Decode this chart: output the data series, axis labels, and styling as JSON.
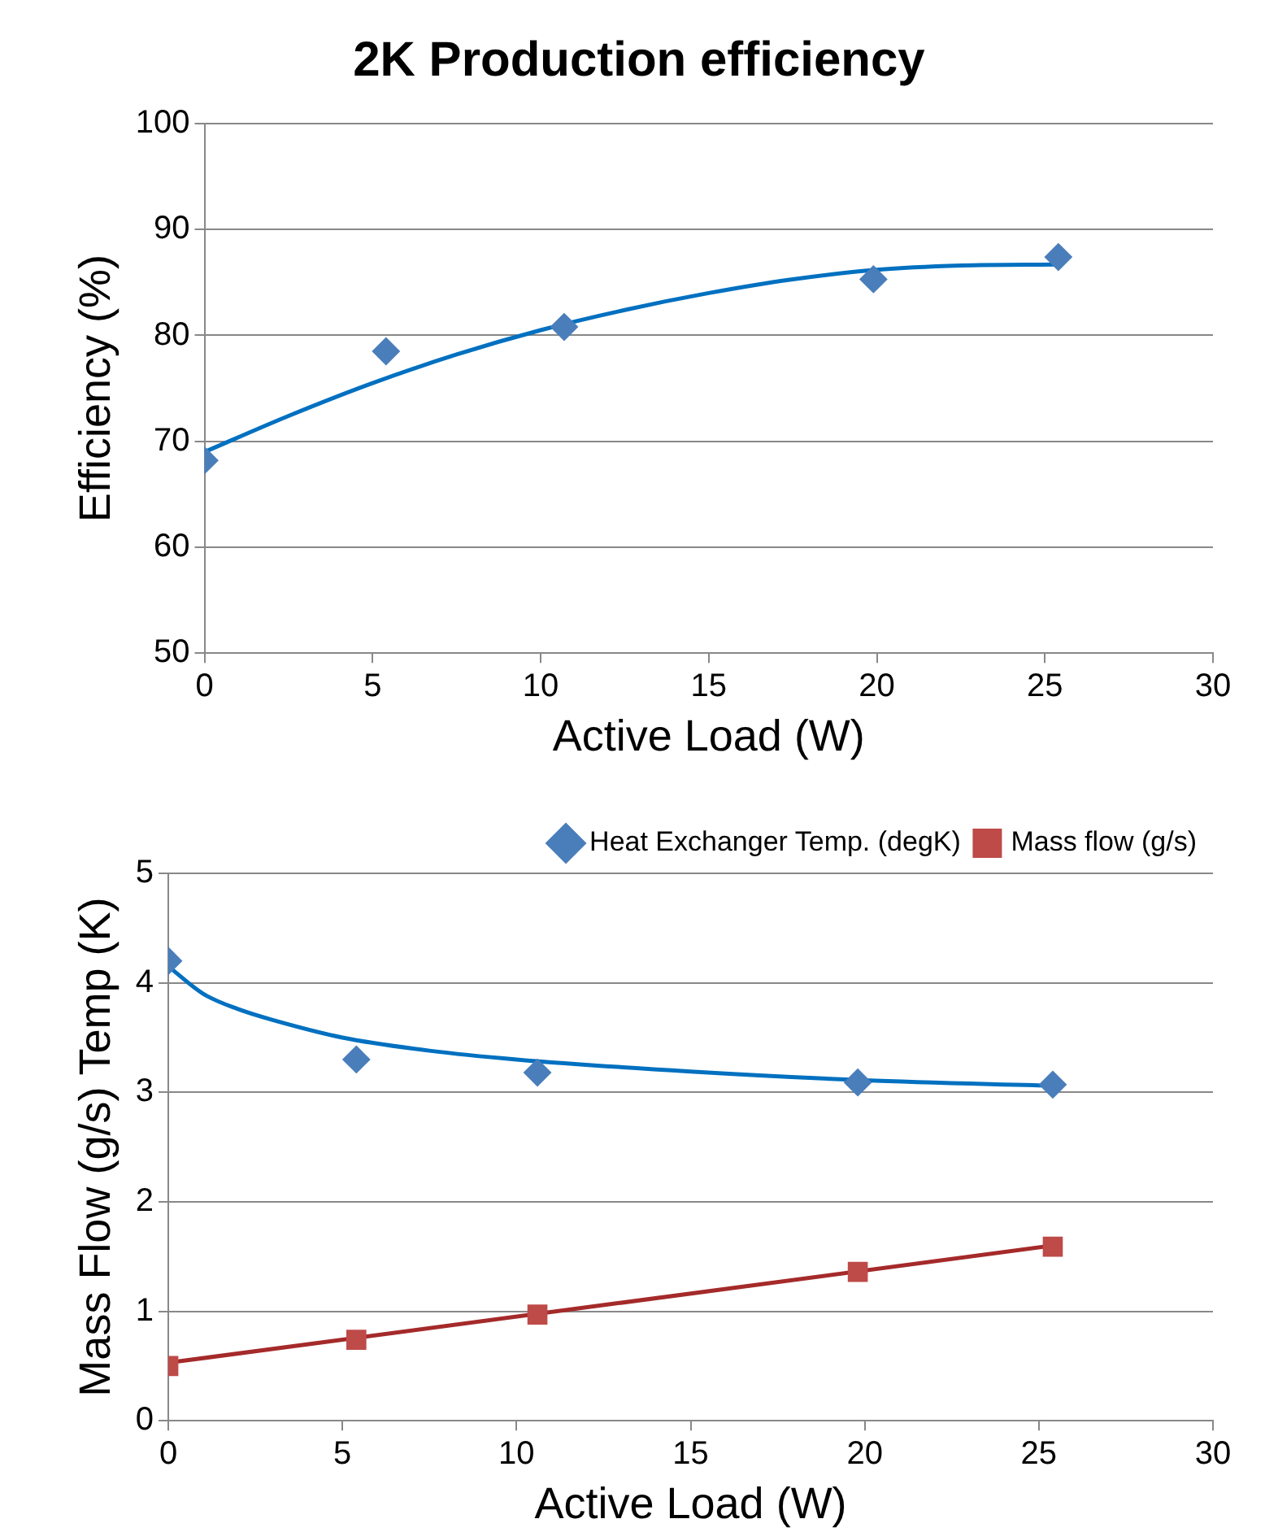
{
  "chart_data": [
    {
      "type": "scatter",
      "title": "2K Production efficiency",
      "xlabel": "Active Load (W)",
      "ylabel": "Efficiency (%)",
      "xlim": [
        0,
        30
      ],
      "xticks": [
        0,
        5,
        10,
        15,
        20,
        25,
        30
      ],
      "ylim": [
        50,
        100
      ],
      "yticks": [
        50,
        60,
        70,
        80,
        90,
        100
      ],
      "grid": "y",
      "marker": "diamond",
      "series": [
        {
          "type": "scatter",
          "color": "#4a7ebb",
          "x": [
            0,
            5.4,
            10.7,
            19.9,
            25.4
          ],
          "values": [
            68.2,
            78.5,
            80.8,
            85.3,
            87.4
          ]
        },
        {
          "type": "line",
          "color": "#0070c0",
          "marker": "none",
          "x": [
            0,
            2.5,
            5,
            7.5,
            10,
            12.5,
            15,
            17.5,
            20,
            22.5,
            25.4
          ],
          "values": [
            69,
            72.4,
            75.5,
            78.2,
            80.5,
            82.4,
            84,
            85.3,
            86.2,
            86.6,
            86.7
          ]
        }
      ]
    },
    {
      "type": "scatter",
      "xlabel": "Active Load (W)",
      "ylabel": "Mass Flow (g/s) Temp (K)",
      "xlim": [
        0,
        30
      ],
      "xticks": [
        0,
        5,
        10,
        15,
        20,
        25,
        30
      ],
      "ylim": [
        0,
        5
      ],
      "yticks": [
        0,
        1,
        2,
        3,
        4,
        5
      ],
      "grid": "y",
      "legend": "top right",
      "series": [
        {
          "type": "scatter",
          "name": "Heat Exchanger Temp. (degK)",
          "color": "#4a7ebb",
          "marker": "diamond",
          "x": [
            0,
            5.4,
            10.6,
            19.8,
            25.4
          ],
          "values": [
            4.2,
            3.3,
            3.18,
            3.09,
            3.07
          ]
        },
        {
          "type": "scatter",
          "name": "Mass flow (g/s)",
          "color": "#be4b48",
          "marker": "square",
          "x": [
            0,
            5.4,
            10.6,
            19.8,
            25.4
          ],
          "values": [
            0.5,
            0.74,
            0.97,
            1.36,
            1.59
          ]
        },
        {
          "type": "line",
          "color": "#0070c0",
          "marker": "none",
          "x": [
            0,
            1,
            2,
            3,
            5,
            7.5,
            10,
            15,
            20,
            25.4
          ],
          "values": [
            4.15,
            3.9,
            3.76,
            3.66,
            3.5,
            3.38,
            3.3,
            3.19,
            3.11,
            3.06
          ]
        },
        {
          "type": "line",
          "color": "#a52a2a",
          "marker": "none",
          "x": [
            0,
            25.4
          ],
          "values": [
            0.53,
            1.6
          ]
        }
      ]
    }
  ]
}
